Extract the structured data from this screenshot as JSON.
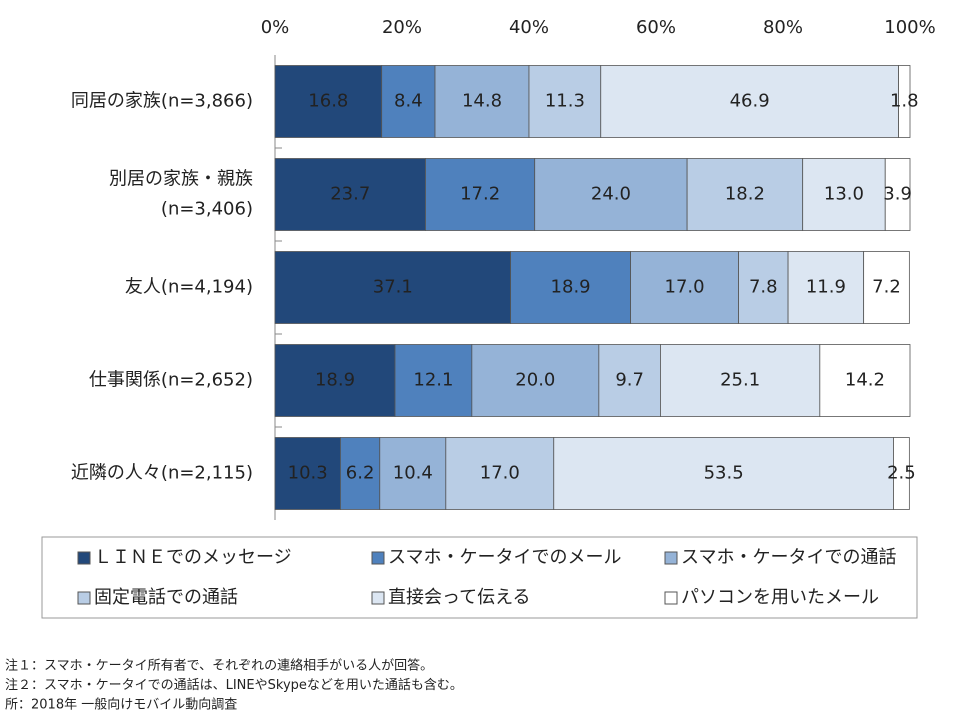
{
  "chart_data": {
    "type": "stacked_bar_horizontal",
    "categories": [
      "同居の家族(n=3,866)",
      "別居の家族・親族\n(n=3,406)",
      "友人(n=4,194)",
      "仕事関係(n=2,652)",
      "近隣の人々(n=2,115)"
    ],
    "series": [
      {
        "name": "ＬＩＮＥでのメッセージ",
        "color": "#22487a",
        "values": [
          16.8,
          23.7,
          37.1,
          18.9,
          10.3
        ],
        "value_labels": [
          "16.8",
          "23.7",
          "37.1",
          "18.9",
          "10.3"
        ]
      },
      {
        "name": "スマホ・ケータイでのメール",
        "color": "#4f81bd",
        "values": [
          8.4,
          17.2,
          18.9,
          12.1,
          6.2
        ],
        "value_labels": [
          "8.4",
          "17.2",
          "18.9",
          "12.1",
          "6.2"
        ]
      },
      {
        "name": "スマホ・ケータイでの通話",
        "color": "#95b3d7",
        "values": [
          14.8,
          24.0,
          17.0,
          20.0,
          10.4
        ],
        "value_labels": [
          "14.8",
          "24.0",
          "17.0",
          "20.0",
          "10.4"
        ]
      },
      {
        "name": "固定電話での通話",
        "color": "#b9cde5",
        "values": [
          11.3,
          18.2,
          7.8,
          9.7,
          17.0
        ],
        "value_labels": [
          "11.3",
          "18.2",
          "7.8",
          "9.7",
          "17.0"
        ]
      },
      {
        "name": "直接会って伝える",
        "color": "#dce6f2",
        "values": [
          46.9,
          13.0,
          11.9,
          25.1,
          53.5
        ],
        "value_labels": [
          "46.9",
          "13.0",
          "11.9",
          "25.1",
          "53.5"
        ]
      },
      {
        "name": "パソコンを用いたメール",
        "color": "#ffffff",
        "values": [
          1.8,
          3.9,
          7.2,
          14.2,
          2.5
        ],
        "value_labels": [
          "1.8",
          "3.9",
          "7.2",
          "14.2",
          "2.5"
        ]
      }
    ],
    "xlim": [
      0,
      100
    ],
    "xticks": [
      {
        "value": 0,
        "label": "0%"
      },
      {
        "value": 20,
        "label": "20%"
      },
      {
        "value": 40,
        "label": "40%"
      },
      {
        "value": 60,
        "label": "60%"
      },
      {
        "value": 80,
        "label": "80%"
      },
      {
        "value": 100,
        "label": "100%"
      }
    ],
    "notes": [
      "注１：スマホ・ケータイ所有者で、それぞれの連絡相手がいる人が回答。",
      "注２：スマホ・ケータイでの通話は、LINEやSkypeなどを用いた通話も含む。",
      "所：2018年 一般向けモバイル動向調査"
    ]
  }
}
